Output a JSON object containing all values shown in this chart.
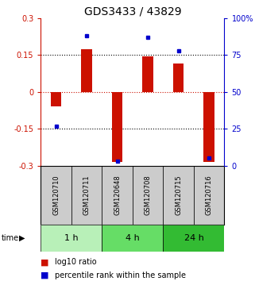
{
  "title": "GDS3433 / 43829",
  "samples": [
    "GSM120710",
    "GSM120711",
    "GSM120648",
    "GSM120708",
    "GSM120715",
    "GSM120716"
  ],
  "log10_ratio": [
    -0.06,
    0.175,
    -0.285,
    0.145,
    0.115,
    -0.285
  ],
  "percentile_rank": [
    27,
    88,
    3,
    87,
    78,
    5
  ],
  "time_groups": [
    {
      "label": "1 h",
      "color": "#b8f0b8"
    },
    {
      "label": "4 h",
      "color": "#66dd66"
    },
    {
      "label": "24 h",
      "color": "#33bb33"
    }
  ],
  "ylim": [
    -0.3,
    0.3
  ],
  "yticks_left": [
    -0.3,
    -0.15,
    0,
    0.15,
    0.3
  ],
  "yticks_right": [
    0,
    25,
    50,
    75,
    100
  ],
  "hlines_black": [
    0.15,
    -0.15
  ],
  "hline_red": 0,
  "bar_color": "#cc1100",
  "dot_color": "#0000cc",
  "bar_width": 0.35,
  "bg": "#ffffff",
  "cell_color": "#cccccc",
  "title_fontsize": 10,
  "tick_fontsize": 7,
  "sample_fontsize": 6,
  "time_fontsize": 8,
  "legend_fontsize": 7
}
